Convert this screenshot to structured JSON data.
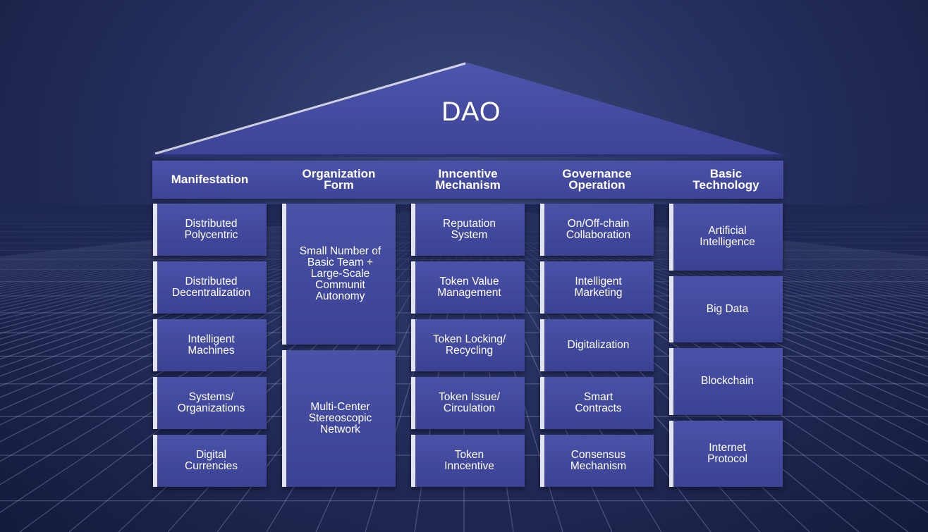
{
  "title": "DAO",
  "colors": {
    "accent": "#434a9f",
    "background": "#1c2450"
  },
  "columns": [
    {
      "header": "Manifestation",
      "items": [
        "Distributed\nPolycentric",
        "Distributed\nDecentralization",
        "Intelligent\nMachines",
        "Systems/\nOrganizations",
        "Digital\nCurrencies"
      ]
    },
    {
      "header": "Organization\nForm",
      "items": [
        "Small Number of\nBasic Team +\nLarge-Scale\nCommunit\nAutonomy",
        "Multi-Center\nStereoscopic\nNetwork"
      ]
    },
    {
      "header": "Inncentive\nMechanism",
      "items": [
        "Reputation\nSystem",
        "Token Value\nManagement",
        "Token Locking/\nRecycling",
        "Token Issue/\nCirculation",
        "Token\nInncentive"
      ]
    },
    {
      "header": "Governance\nOperation",
      "items": [
        "On/Off-chain\nCollaboration",
        "Intelligent\nMarketing",
        "Digitalization",
        "Smart\nContracts",
        "Consensus\nMechanism"
      ]
    },
    {
      "header": "Basic\nTechnology",
      "items": [
        "Artificial\nIntelligence",
        "Big Data",
        "Blockchain",
        "Internet\nProtocol"
      ]
    }
  ]
}
